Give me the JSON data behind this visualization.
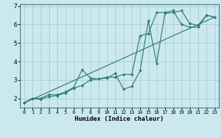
{
  "xlabel": "Humidex (Indice chaleur)",
  "background_color": "#cce8ef",
  "grid_color": "#aacdd8",
  "line_color": "#2e7d72",
  "xlim": [
    -0.5,
    23.5
  ],
  "ylim": [
    1.5,
    7.1
  ],
  "yticks": [
    2,
    3,
    4,
    5,
    6,
    7
  ],
  "xticks": [
    0,
    1,
    2,
    3,
    4,
    5,
    6,
    7,
    8,
    9,
    10,
    11,
    12,
    13,
    14,
    15,
    16,
    17,
    18,
    19,
    20,
    21,
    22,
    23
  ],
  "line1_x": [
    0,
    1,
    2,
    3,
    4,
    5,
    6,
    7,
    8,
    9,
    10,
    11,
    12,
    13,
    14,
    15,
    16,
    17,
    18,
    19,
    20,
    21,
    22,
    23
  ],
  "line1_y": [
    1.75,
    2.0,
    1.95,
    2.1,
    2.15,
    2.3,
    2.55,
    2.7,
    3.0,
    3.05,
    3.1,
    3.35,
    2.5,
    2.65,
    3.5,
    6.2,
    3.9,
    6.6,
    6.65,
    6.75,
    6.05,
    5.95,
    6.5,
    6.4
  ],
  "line2_x": [
    0,
    1,
    2,
    3,
    4,
    5,
    6,
    7,
    8,
    9,
    10,
    11,
    12,
    13,
    14,
    15,
    16,
    17,
    18,
    19,
    20,
    21,
    22,
    23
  ],
  "line2_y": [
    1.75,
    2.0,
    2.0,
    2.2,
    2.2,
    2.35,
    2.6,
    3.55,
    3.1,
    3.05,
    3.15,
    3.15,
    3.3,
    3.3,
    5.4,
    5.5,
    6.65,
    6.65,
    6.75,
    6.0,
    5.85,
    5.85,
    6.5,
    6.4
  ],
  "line3_x": [
    0,
    23
  ],
  "line3_y": [
    1.75,
    6.4
  ]
}
